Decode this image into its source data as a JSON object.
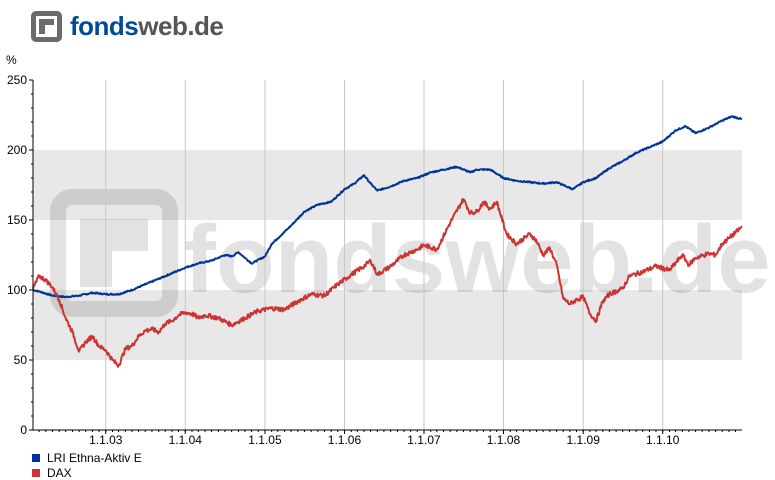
{
  "brand": {
    "name_part1": "fonds",
    "name_part2": "web.de",
    "watermark_text": "fondsweb.de",
    "color_primary": "#004a99",
    "color_secondary": "#555555"
  },
  "chart_data": {
    "type": "line",
    "ylabel": "%",
    "ylim": [
      0,
      250
    ],
    "yticks": [
      0,
      50,
      100,
      150,
      200,
      250
    ],
    "xlim": [
      "2002-02-01",
      "2010-12-31"
    ],
    "xticks": [
      "1.1.03",
      "1.1.04",
      "1.1.05",
      "1.1.06",
      "1.1.07",
      "1.1.08",
      "1.1.09",
      "1.1.10"
    ],
    "xtick_dates": [
      "2003-01-01",
      "2004-01-01",
      "2005-01-01",
      "2006-01-01",
      "2007-01-01",
      "2008-01-01",
      "2009-01-01",
      "2010-01-01"
    ],
    "grid": true,
    "legend_position": "bottom-left",
    "series": [
      {
        "name": "LRI Ethna-Aktiv E",
        "color": "#003399",
        "points": [
          [
            "2002-02-01",
            100
          ],
          [
            "2002-03-01",
            99
          ],
          [
            "2002-05-01",
            96
          ],
          [
            "2002-07-01",
            95
          ],
          [
            "2002-09-01",
            96
          ],
          [
            "2002-11-01",
            98
          ],
          [
            "2003-01-01",
            97
          ],
          [
            "2003-03-01",
            97
          ],
          [
            "2003-05-01",
            100
          ],
          [
            "2003-07-01",
            104
          ],
          [
            "2003-09-01",
            108
          ],
          [
            "2003-11-01",
            112
          ],
          [
            "2004-01-01",
            116
          ],
          [
            "2004-03-01",
            119
          ],
          [
            "2004-05-01",
            121
          ],
          [
            "2004-07-01",
            125
          ],
          [
            "2004-08-01",
            124
          ],
          [
            "2004-09-01",
            127
          ],
          [
            "2004-10-01",
            123
          ],
          [
            "2004-11-01",
            119
          ],
          [
            "2005-01-01",
            124
          ],
          [
            "2005-02-01",
            133
          ],
          [
            "2005-03-01",
            137
          ],
          [
            "2005-05-01",
            146
          ],
          [
            "2005-07-01",
            156
          ],
          [
            "2005-09-01",
            161
          ],
          [
            "2005-11-01",
            163
          ],
          [
            "2006-01-01",
            172
          ],
          [
            "2006-02-15",
            176
          ],
          [
            "2006-04-01",
            182
          ],
          [
            "2006-05-01",
            176
          ],
          [
            "2006-06-01",
            171
          ],
          [
            "2006-08-01",
            174
          ],
          [
            "2006-10-01",
            178
          ],
          [
            "2006-12-01",
            180
          ],
          [
            "2007-02-01",
            184
          ],
          [
            "2007-04-01",
            186
          ],
          [
            "2007-06-01",
            188
          ],
          [
            "2007-08-01",
            184
          ],
          [
            "2007-09-01",
            186
          ],
          [
            "2007-11-01",
            186
          ],
          [
            "2008-01-01",
            180
          ],
          [
            "2008-03-01",
            178
          ],
          [
            "2008-05-01",
            177
          ],
          [
            "2008-07-01",
            176
          ],
          [
            "2008-09-01",
            177
          ],
          [
            "2008-10-15",
            174
          ],
          [
            "2008-11-15",
            172
          ],
          [
            "2009-01-01",
            177
          ],
          [
            "2009-03-01",
            180
          ],
          [
            "2009-05-01",
            187
          ],
          [
            "2009-07-01",
            192
          ],
          [
            "2009-09-01",
            198
          ],
          [
            "2009-11-01",
            202
          ],
          [
            "2010-01-01",
            206
          ],
          [
            "2010-03-01",
            214
          ],
          [
            "2010-04-15",
            217
          ],
          [
            "2010-06-01",
            212
          ],
          [
            "2010-08-01",
            216
          ],
          [
            "2010-10-01",
            221
          ],
          [
            "2010-11-15",
            224
          ],
          [
            "2010-12-31",
            222
          ]
        ]
      },
      {
        "name": "DAX",
        "color": "#cc3333",
        "points": [
          [
            "2002-02-01",
            101
          ],
          [
            "2002-03-01",
            110
          ],
          [
            "2002-04-01",
            107
          ],
          [
            "2002-05-01",
            102
          ],
          [
            "2002-06-01",
            93
          ],
          [
            "2002-07-01",
            80
          ],
          [
            "2002-08-01",
            70
          ],
          [
            "2002-09-01",
            56
          ],
          [
            "2002-10-01",
            63
          ],
          [
            "2002-11-01",
            67
          ],
          [
            "2002-12-01",
            60
          ],
          [
            "2003-01-01",
            57
          ],
          [
            "2003-02-01",
            50
          ],
          [
            "2003-03-01",
            46
          ],
          [
            "2003-04-01",
            58
          ],
          [
            "2003-05-01",
            60
          ],
          [
            "2003-06-01",
            67
          ],
          [
            "2003-07-01",
            71
          ],
          [
            "2003-08-01",
            72
          ],
          [
            "2003-09-01",
            70
          ],
          [
            "2003-10-01",
            76
          ],
          [
            "2003-11-01",
            78
          ],
          [
            "2003-12-01",
            82
          ],
          [
            "2004-01-01",
            84
          ],
          [
            "2004-02-01",
            83
          ],
          [
            "2004-03-01",
            80
          ],
          [
            "2004-04-01",
            82
          ],
          [
            "2004-06-01",
            80
          ],
          [
            "2004-08-01",
            75
          ],
          [
            "2004-10-01",
            80
          ],
          [
            "2004-12-01",
            85
          ],
          [
            "2005-02-01",
            87
          ],
          [
            "2005-04-01",
            86
          ],
          [
            "2005-06-01",
            92
          ],
          [
            "2005-08-01",
            97
          ],
          [
            "2005-10-01",
            96
          ],
          [
            "2005-12-01",
            104
          ],
          [
            "2006-02-01",
            111
          ],
          [
            "2006-04-01",
            117
          ],
          [
            "2006-05-01",
            121
          ],
          [
            "2006-06-01",
            111
          ],
          [
            "2006-08-01",
            117
          ],
          [
            "2006-10-01",
            125
          ],
          [
            "2006-12-01",
            129
          ],
          [
            "2007-01-01",
            132
          ],
          [
            "2007-03-01",
            129
          ],
          [
            "2007-05-01",
            148
          ],
          [
            "2007-07-01",
            165
          ],
          [
            "2007-08-01",
            155
          ],
          [
            "2007-09-01",
            156
          ],
          [
            "2007-10-01",
            163
          ],
          [
            "2007-11-01",
            158
          ],
          [
            "2007-12-01",
            163
          ],
          [
            "2008-01-15",
            140
          ],
          [
            "2008-03-01",
            133
          ],
          [
            "2008-05-01",
            140
          ],
          [
            "2008-06-01",
            135
          ],
          [
            "2008-07-01",
            125
          ],
          [
            "2008-08-01",
            130
          ],
          [
            "2008-09-01",
            118
          ],
          [
            "2008-10-01",
            94
          ],
          [
            "2008-11-01",
            90
          ],
          [
            "2008-12-01",
            93
          ],
          [
            "2009-01-01",
            95
          ],
          [
            "2009-02-01",
            83
          ],
          [
            "2009-03-01",
            78
          ],
          [
            "2009-04-01",
            92
          ],
          [
            "2009-05-01",
            97
          ],
          [
            "2009-07-01",
            101
          ],
          [
            "2009-08-01",
            110
          ],
          [
            "2009-10-01",
            113
          ],
          [
            "2009-12-01",
            117
          ],
          [
            "2010-02-01",
            114
          ],
          [
            "2010-04-01",
            125
          ],
          [
            "2010-05-01",
            118
          ],
          [
            "2010-06-01",
            123
          ],
          [
            "2010-08-01",
            126
          ],
          [
            "2010-09-01",
            125
          ],
          [
            "2010-10-01",
            133
          ],
          [
            "2010-11-01",
            137
          ],
          [
            "2010-12-31",
            145
          ]
        ]
      }
    ]
  }
}
